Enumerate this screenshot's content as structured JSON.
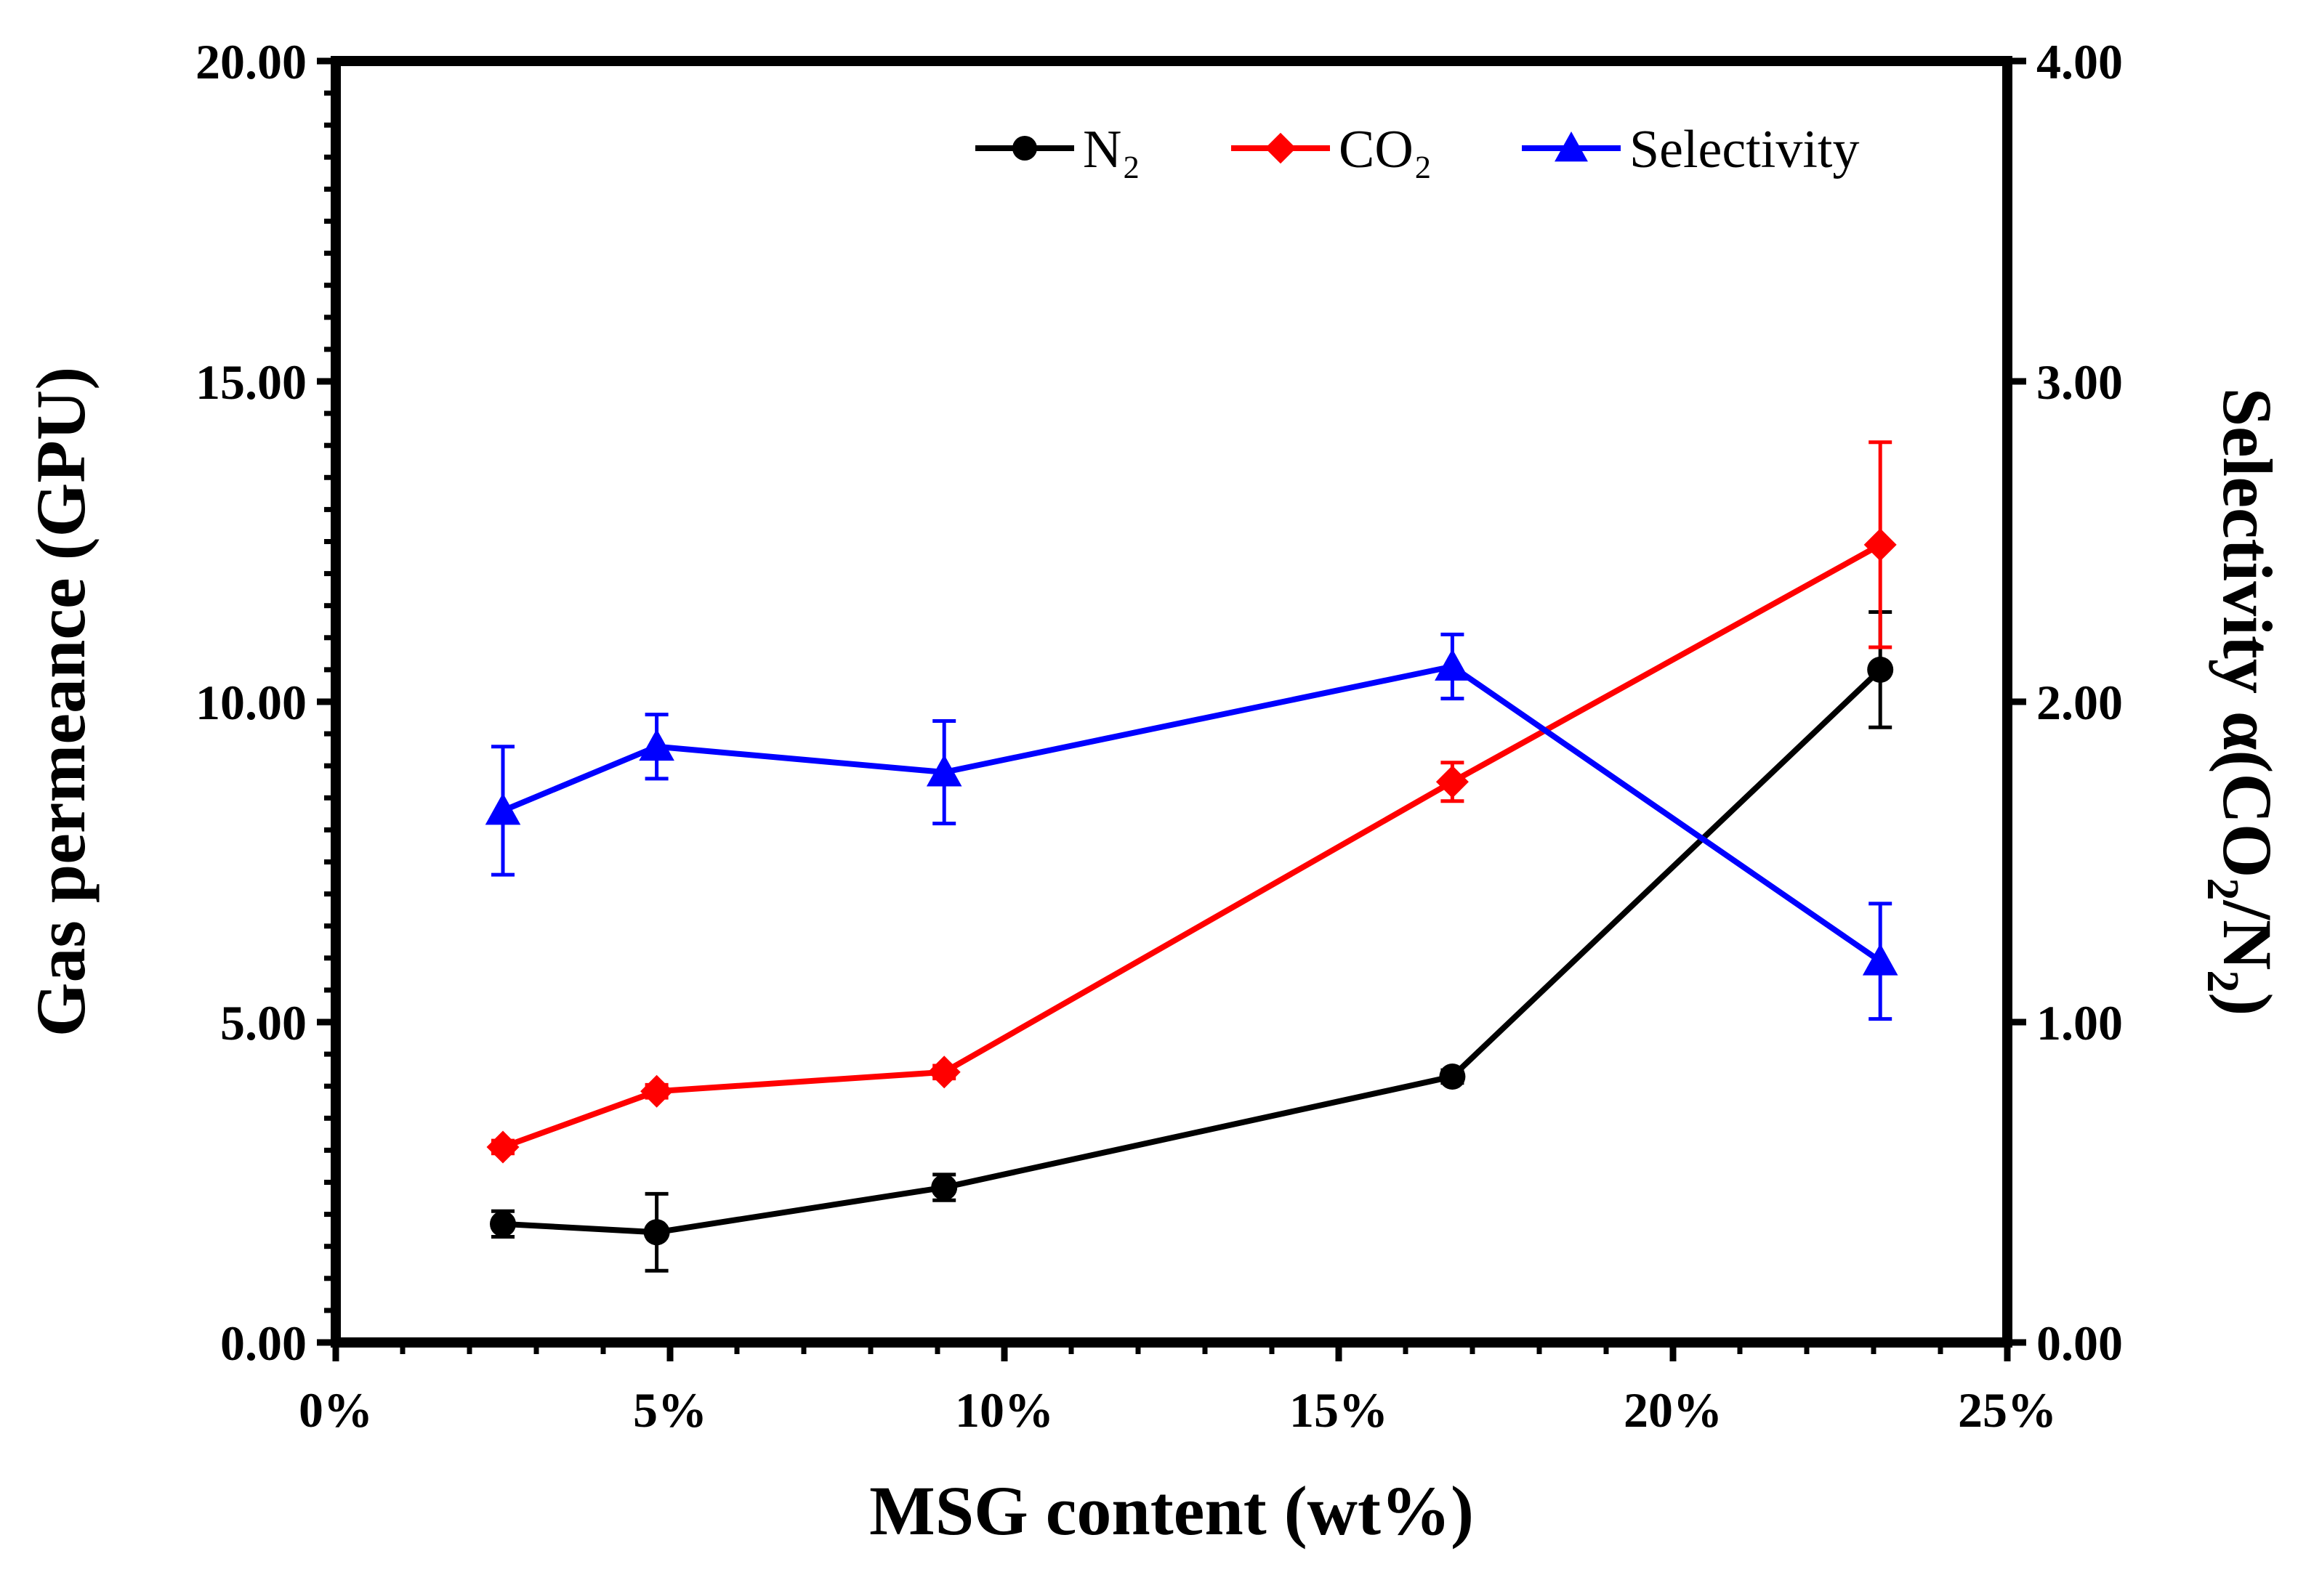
{
  "chart_data": {
    "type": "line",
    "x_axis": {
      "label": "MSG content (wt%)",
      "min": 0,
      "max": 25,
      "ticks": [
        0,
        5,
        10,
        15,
        20,
        25
      ],
      "tick_labels": [
        "0%",
        "5%",
        "10%",
        "15%",
        "20%",
        "25%"
      ]
    },
    "y_axis_left": {
      "label": "Gas permeance (GPU)",
      "min": 0,
      "max": 20,
      "ticks": [
        0,
        5,
        10,
        15,
        20
      ],
      "tick_labels": [
        "0.00",
        "5.00",
        "10.00",
        "15.00",
        "20.00"
      ]
    },
    "y_axis_right": {
      "label_parts": {
        "prefix": "Selectivity α(CO",
        "sub1": "2",
        "middle": "/N",
        "sub2": "2",
        "suffix": ")"
      },
      "min": 0,
      "max": 4,
      "ticks": [
        0,
        1,
        2,
        3,
        4
      ],
      "tick_labels": [
        "0.00",
        "1.00",
        "2.00",
        "3.00",
        "4.00"
      ]
    },
    "x": [
      2.5,
      4.8,
      9.1,
      16.7,
      23.1
    ],
    "series": [
      {
        "name": "N₂",
        "axis": "left",
        "color": "#000000",
        "marker": "circle",
        "values": [
          1.85,
          1.72,
          2.42,
          4.15,
          10.5
        ],
        "errors": [
          0.2,
          0.6,
          0.2,
          0.1,
          0.9
        ]
      },
      {
        "name": "CO₂",
        "axis": "left",
        "color": "#ff0000",
        "marker": "diamond",
        "values": [
          3.05,
          3.92,
          4.22,
          8.75,
          12.45
        ],
        "errors": [
          0.1,
          0.1,
          0.1,
          0.3,
          1.6
        ]
      },
      {
        "name": "Selectivity",
        "axis": "right",
        "color": "#0000ff",
        "marker": "triangle",
        "values": [
          1.66,
          1.86,
          1.78,
          2.11,
          1.19
        ],
        "errors": [
          0.2,
          0.1,
          0.16,
          0.1,
          0.18
        ]
      }
    ],
    "legend_position": "top-right"
  }
}
